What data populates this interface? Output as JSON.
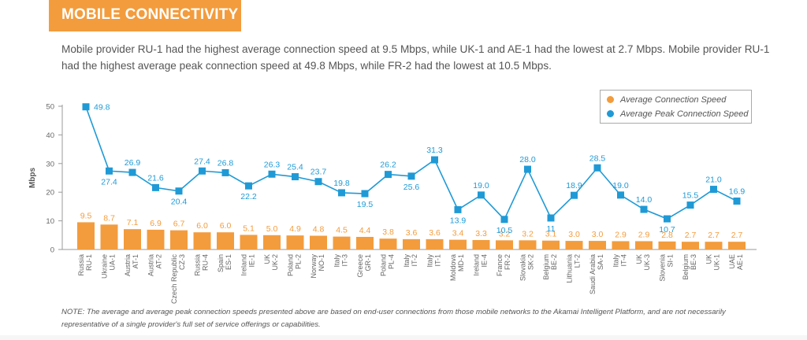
{
  "header": {
    "title": "MOBILE CONNECTIVITY"
  },
  "summary": "Mobile provider RU-1 had the highest average connection speed at 9.5 Mbps, while UK-1 and AE-1 had the lowest at 2.7 Mbps. Mobile provider RU-1 had the highest average peak connection speed at 49.8 Mbps, while FR-2 had the lowest at 10.5 Mbps.",
  "note": "NOTE: The average and average peak connection speeds presented above are based on end-user connections from those mobile networks to the Akamai Intelligent Platform, and are not necessarily representative of a single provider's full set of service offerings or capabilities.",
  "colors": {
    "accent": "#f39c3d",
    "bar": "#f39c3d",
    "line": "#1f9ad6"
  },
  "chart_data": {
    "type": "bar",
    "ylabel": "Mbps",
    "ylim": [
      0,
      50
    ],
    "yticks": [
      "0",
      "10",
      "20",
      "30",
      "40",
      "50"
    ],
    "legend_position": "top-right",
    "grid": false,
    "categories": [
      {
        "country": "Russia",
        "provider": "RU-1"
      },
      {
        "country": "Ukraine",
        "provider": "UA-1"
      },
      {
        "country": "Austria",
        "provider": "AT-1"
      },
      {
        "country": "Austria",
        "provider": "AT-2"
      },
      {
        "country": "Czech Republic",
        "provider": "CZ-3"
      },
      {
        "country": "Russia",
        "provider": "RU-4"
      },
      {
        "country": "Spain",
        "provider": "ES-1"
      },
      {
        "country": "Ireland",
        "provider": "IE-1"
      },
      {
        "country": "UK",
        "provider": "UK-2"
      },
      {
        "country": "Poland",
        "provider": "PL-2"
      },
      {
        "country": "Norway",
        "provider": "NO-1"
      },
      {
        "country": "Italy",
        "provider": "IT-3"
      },
      {
        "country": "Greece",
        "provider": "GR-1"
      },
      {
        "country": "Poland",
        "provider": "PL-4"
      },
      {
        "country": "Italy",
        "provider": "IT-2"
      },
      {
        "country": "Italy",
        "provider": "IT-1"
      },
      {
        "country": "Moldova",
        "provider": "MD-1"
      },
      {
        "country": "Ireland",
        "provider": "IE-4"
      },
      {
        "country": "France",
        "provider": "FR-2"
      },
      {
        "country": "Slovakia",
        "provider": "SK-2"
      },
      {
        "country": "Belgium",
        "provider": "BE-2"
      },
      {
        "country": "Lithuania",
        "provider": "LT-2"
      },
      {
        "country": "Saudi Arabia",
        "provider": "SA-1"
      },
      {
        "country": "Italy",
        "provider": "IT-4"
      },
      {
        "country": "UK",
        "provider": "UK-3"
      },
      {
        "country": "Slovenia",
        "provider": "SI-1"
      },
      {
        "country": "Belgium",
        "provider": "BE-3"
      },
      {
        "country": "UK",
        "provider": "UK-1"
      },
      {
        "country": "UAE",
        "provider": "AE-1"
      }
    ],
    "series": [
      {
        "name": "Average Connection Speed",
        "type": "bar",
        "labels": [
          "9.5",
          "8.7",
          "7.1",
          "6.9",
          "6.7",
          "6.0",
          "6.0",
          "5.1",
          "5.0",
          "4.9",
          "4.8",
          "4.5",
          "4.4",
          "3.8",
          "3.6",
          "3.6",
          "3.4",
          "3.3",
          "3.2",
          "3.2",
          "3.1",
          "3.0",
          "3.0",
          "2.9",
          "2.9",
          "2.8",
          "2.7",
          "2.7",
          "2.7"
        ],
        "values": [
          9.5,
          8.7,
          7.1,
          6.9,
          6.7,
          6.0,
          6.0,
          5.1,
          5.0,
          4.9,
          4.8,
          4.5,
          4.4,
          3.8,
          3.6,
          3.6,
          3.4,
          3.3,
          3.2,
          3.2,
          3.1,
          3.0,
          3.0,
          2.9,
          2.9,
          2.8,
          2.7,
          2.7,
          2.7
        ]
      },
      {
        "name": "Average Peak Connection Speed",
        "type": "line",
        "labels": [
          "49.8",
          "27.4",
          "26.9",
          "21.6",
          "20.4",
          "27.4",
          "26.8",
          "22.2",
          "26.3",
          "25.4",
          "23.7",
          "19.8",
          "19.5",
          "26.2",
          "25.6",
          "31.3",
          "13.9",
          "19.0",
          "10.5",
          "28.0",
          "11",
          "18.9",
          "28.5",
          "19.0",
          "14.0",
          "10.7",
          "15.5",
          "21.0",
          "16.9"
        ],
        "values": [
          49.8,
          27.4,
          26.9,
          21.6,
          20.4,
          27.4,
          26.8,
          22.2,
          26.3,
          25.4,
          23.7,
          19.8,
          19.5,
          26.2,
          25.6,
          31.3,
          13.9,
          19.0,
          10.5,
          28.0,
          11,
          18.9,
          28.5,
          19.0,
          14.0,
          10.7,
          15.5,
          21.0,
          16.9
        ]
      }
    ]
  }
}
